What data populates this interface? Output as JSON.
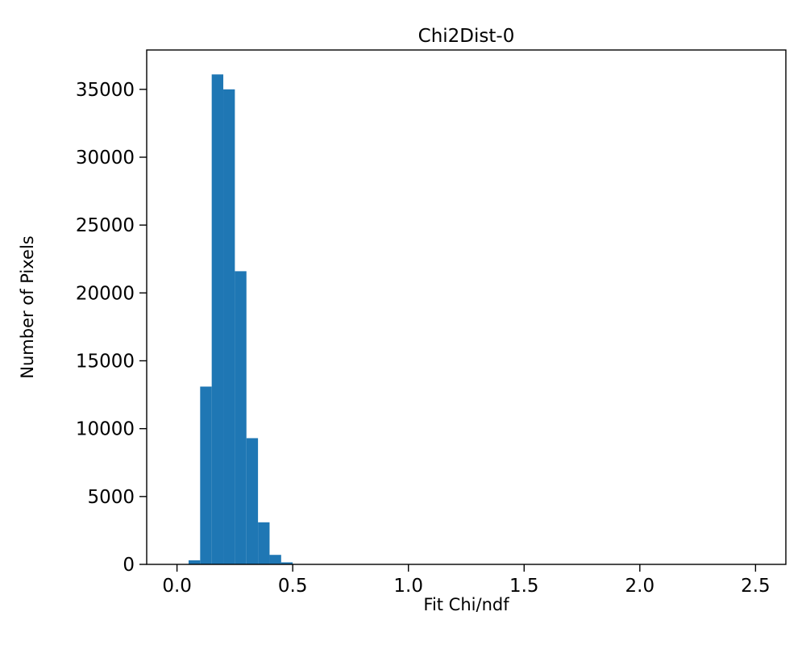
{
  "chart_data": {
    "type": "bar",
    "subtype": "histogram",
    "title": "Chi2Dist-0",
    "xlabel": "Fit Chi/ndf",
    "ylabel": "Number of Pixels",
    "bar_color": "#1f77b4",
    "axis_color": "#000000",
    "background_color": "#ffffff",
    "bin_edges": [
      0.05,
      0.1,
      0.15,
      0.2,
      0.25,
      0.3,
      0.35,
      0.4,
      0.45,
      0.5
    ],
    "counts": [
      300,
      13100,
      36100,
      35000,
      21600,
      9300,
      3100,
      700,
      150
    ],
    "xlim": [
      -0.131,
      2.631
    ],
    "ylim": [
      0,
      37900
    ],
    "xticks": [
      0.0,
      0.5,
      1.0,
      1.5,
      2.0,
      2.5
    ],
    "xtick_labels": [
      "0.0",
      "0.5",
      "1.0",
      "1.5",
      "2.0",
      "2.5"
    ],
    "yticks": [
      0,
      5000,
      10000,
      15000,
      20000,
      25000,
      30000,
      35000
    ],
    "ytick_labels": [
      "0",
      "5000",
      "10000",
      "15000",
      "20000",
      "25000",
      "30000",
      "35000"
    ],
    "grid": false,
    "legend_position": "none"
  }
}
